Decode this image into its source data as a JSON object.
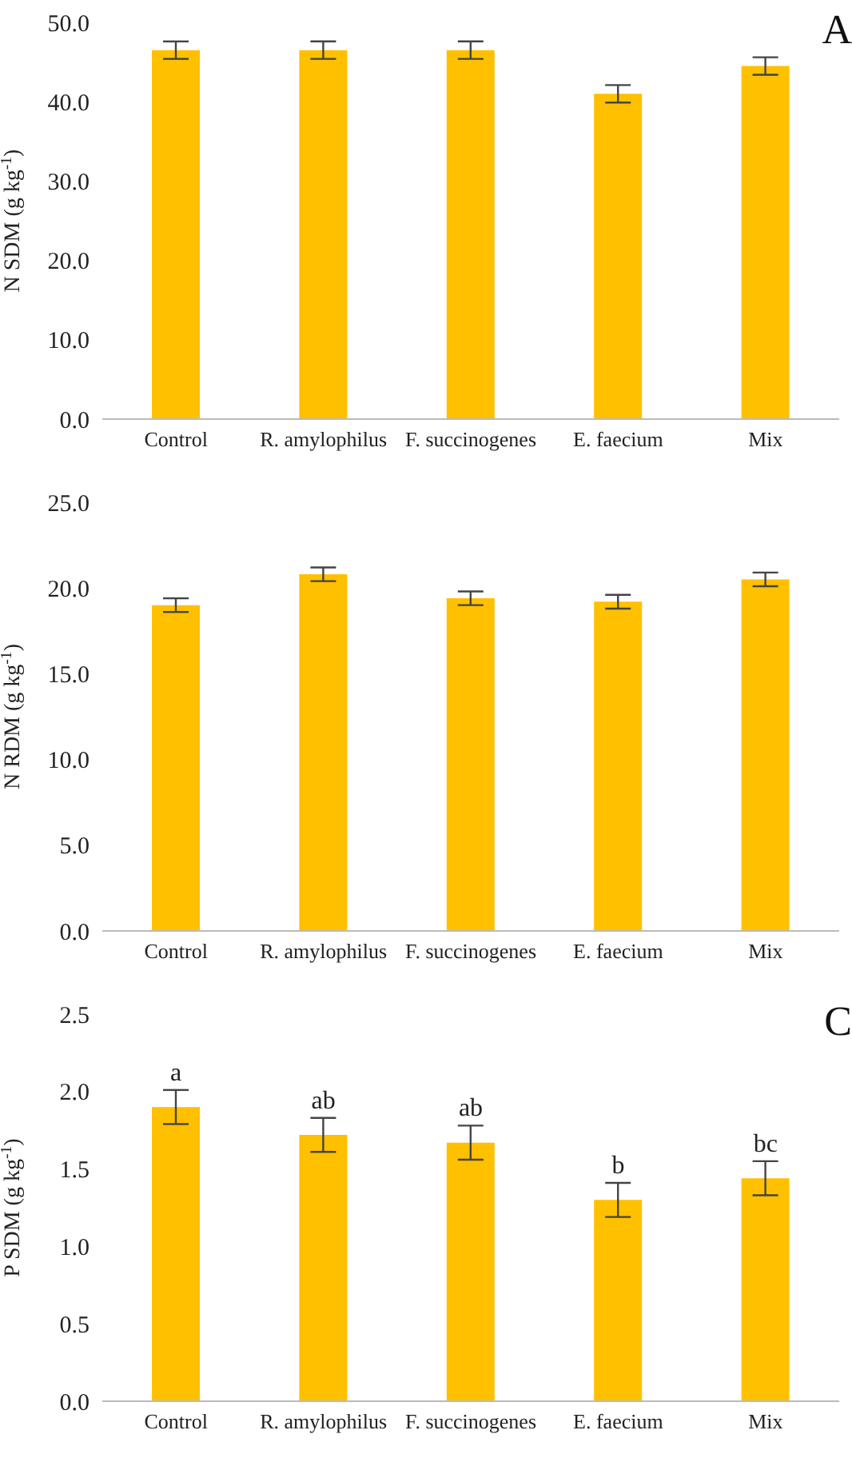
{
  "chart_data": [
    {
      "type": "bar",
      "title": "A",
      "ylabel": "N SDM (g kg$^{-1}$)",
      "categories": [
        "Control",
        "R. amylophilus",
        "F. succinogenes",
        "E. faecium",
        "Mix"
      ],
      "values": [
        46.5,
        46.5,
        46.5,
        41.0,
        44.5
      ],
      "errors": [
        1.1,
        1.1,
        1.1,
        1.1,
        1.1
      ],
      "color": "#ffc000",
      "ylim": [
        0,
        50
      ],
      "yticks": [
        {
          "value": 0,
          "label": "0.0"
        },
        {
          "value": 10,
          "label": "10.0"
        },
        {
          "value": 20,
          "label": "20.0"
        },
        {
          "value": 30,
          "label": "30.0"
        },
        {
          "value": 40,
          "label": "40.0"
        },
        {
          "value": 50,
          "label": "50.0"
        }
      ],
      "grid": false
    },
    {
      "type": "bar",
      "ylabel": "N RDM (g kg$^{-1}$)",
      "categories": [
        "Control",
        "R. amylophilus",
        "F. succinogenes",
        "E. faecium",
        "Mix"
      ],
      "values": [
        19.0,
        20.8,
        19.4,
        19.2,
        20.5
      ],
      "errors": [
        0.4,
        0.4,
        0.4,
        0.4,
        0.4
      ],
      "color": "#ffc000",
      "ylim": [
        0,
        25
      ],
      "yticks": [
        {
          "value": 0,
          "label": "0.0"
        },
        {
          "value": 5,
          "label": "5.0"
        },
        {
          "value": 10,
          "label": "10.0"
        },
        {
          "value": 15,
          "label": "15.0"
        },
        {
          "value": 20,
          "label": "20.0"
        },
        {
          "value": 25,
          "label": "25.0"
        }
      ],
      "grid": false
    },
    {
      "type": "bar",
      "title": "C",
      "ylabel": "P SDM (g kg$^{-1}$)",
      "categories": [
        "Control",
        "R. amylophilus",
        "F. succinogenes",
        "E. faecium",
        "Mix"
      ],
      "values": [
        1.9,
        1.72,
        1.67,
        1.3,
        1.44
      ],
      "errors": [
        0.11,
        0.11,
        0.11,
        0.11,
        0.11
      ],
      "color": "#ffc000",
      "ylim": [
        0,
        2.5
      ],
      "yticks": [
        {
          "value": 0,
          "label": "0.0"
        },
        {
          "value": 0.5,
          "label": "0.5"
        },
        {
          "value": 1,
          "label": "1.0"
        },
        {
          "value": 1.5,
          "label": "1.5"
        },
        {
          "value": 2,
          "label": "2.0"
        },
        {
          "value": 2.5,
          "label": "2.5"
        }
      ],
      "grid": false,
      "annotations": [
        "a",
        "ab",
        "ab",
        "b",
        "bc"
      ]
    }
  ]
}
